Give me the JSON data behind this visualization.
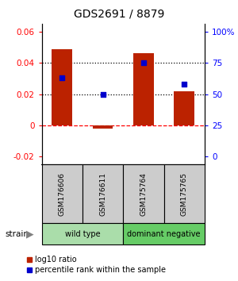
{
  "title": "GDS2691 / 8879",
  "samples": [
    "GSM176606",
    "GSM176611",
    "GSM175764",
    "GSM175765"
  ],
  "log10_ratio": [
    0.049,
    -0.002,
    0.046,
    0.022
  ],
  "percentile_rank": [
    63,
    50,
    75,
    58
  ],
  "groups": [
    {
      "label": "wild type",
      "samples": [
        0,
        1
      ],
      "color": "#aaddaa"
    },
    {
      "label": "dominant negative",
      "samples": [
        2,
        3
      ],
      "color": "#66cc66"
    }
  ],
  "ylim_left": [
    -0.025,
    0.065
  ],
  "ylim_right": [
    0,
    100
  ],
  "yticks_left": [
    -0.02,
    0,
    0.02,
    0.04,
    0.06
  ],
  "yticks_right": [
    0,
    25,
    50,
    75,
    100
  ],
  "ytick_labels_left": [
    "-0.02",
    "0",
    "0.02",
    "0.04",
    "0.06"
  ],
  "ytick_labels_right": [
    "0",
    "25",
    "50",
    "75",
    "100%"
  ],
  "hline_dotted": [
    0.02,
    0.04
  ],
  "hline_dashed": 0.0,
  "bar_color": "#bb2200",
  "dot_color": "#0000cc",
  "bar_width": 0.5,
  "legend_red_label": "log10 ratio",
  "legend_blue_label": "percentile rank within the sample",
  "strain_label": "strain",
  "background_color": "#ffffff",
  "plot_bg": "#ffffff",
  "gray_box_color": "#cccccc",
  "group_colors": [
    "#aaddaa",
    "#66cc66"
  ]
}
